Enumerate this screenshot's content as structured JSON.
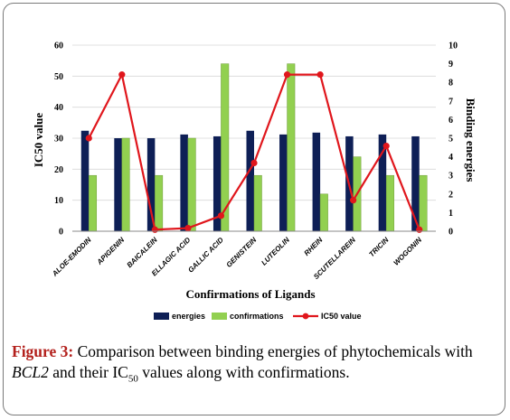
{
  "chart_data": {
    "type": "bar",
    "xlabel": "Confirmations of Ligands",
    "ylabel_left": "IC50 value",
    "ylabel_right": "Binding energies",
    "ylim_left": [
      0,
      60
    ],
    "ylim_right": [
      0,
      10
    ],
    "yticks_left": [
      "0",
      "10",
      "20",
      "30",
      "40",
      "50",
      "60"
    ],
    "yticks_right": [
      "0",
      "1",
      "2",
      "3",
      "4",
      "5",
      "6",
      "7",
      "8",
      "9",
      "10"
    ],
    "categories": [
      "ALOE-EMODIN",
      "APIGENIN",
      "BAICALEIN",
      "ELLAGIC ACID",
      "GALLIC ACID",
      "GENISTEIN",
      "LUTEOLIN",
      "RHEIN",
      "SCUTELLAREIN",
      "TRICIN",
      "WOGONIN"
    ],
    "series": [
      {
        "name": "energies",
        "type": "bar",
        "axis": "right",
        "color": "#0e1f56",
        "values": [
          5.4,
          5.0,
          5.0,
          5.2,
          5.1,
          5.4,
          5.2,
          5.3,
          5.1,
          5.2,
          5.1
        ]
      },
      {
        "name": "confirmations",
        "type": "bar",
        "axis": "right",
        "color": "#92d050",
        "values": [
          3.0,
          5.0,
          3.0,
          5.0,
          9.0,
          3.0,
          9.0,
          2.0,
          4.0,
          3.0,
          3.0
        ]
      },
      {
        "name": "IC50 value",
        "type": "line",
        "axis": "left",
        "color": "#e0161c",
        "values": [
          30,
          50.5,
          0.5,
          1,
          5,
          22,
          50.5,
          50.5,
          10,
          27.5,
          0.5
        ]
      }
    ],
    "grid": "horizontal",
    "legend_position": "bottom"
  },
  "caption": {
    "figure_label": "Figure 3:",
    "text_before_gene": " Comparison between binding energies of phytochemicals with ",
    "gene": "BCL2",
    "text_after_gene": " and their IC",
    "subscript": "50",
    "text_end": " values along with confirmations."
  }
}
